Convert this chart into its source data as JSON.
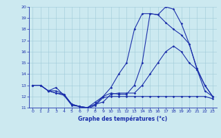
{
  "xlabel": "Graphe des températures (°c)",
  "xlim": [
    -0.5,
    23.5
  ],
  "ylim": [
    11,
    20
  ],
  "yticks": [
    11,
    12,
    13,
    14,
    15,
    16,
    17,
    18,
    19,
    20
  ],
  "xticks": [
    0,
    1,
    2,
    3,
    4,
    5,
    6,
    7,
    8,
    9,
    10,
    11,
    12,
    13,
    14,
    15,
    16,
    17,
    18,
    19,
    20,
    21,
    22,
    23
  ],
  "bg_color": "#cce9f0",
  "line_color": "#1a2eaa",
  "grid_color": "#9ecad8",
  "line1_y": [
    13.0,
    13.0,
    12.5,
    12.8,
    12.1,
    11.2,
    11.1,
    11.0,
    11.3,
    12.0,
    12.3,
    12.2,
    12.2,
    13.0,
    15.0,
    19.4,
    19.3,
    20.0,
    19.8,
    18.5,
    16.7,
    14.5,
    13.0,
    12.0
  ],
  "line2_y": [
    13.0,
    13.0,
    12.5,
    12.3,
    12.2,
    11.3,
    11.1,
    11.0,
    11.3,
    11.5,
    12.2,
    12.3,
    12.3,
    12.3,
    13.0,
    14.0,
    15.0,
    16.0,
    16.5,
    16.0,
    15.0,
    14.4,
    12.5,
    12.0
  ],
  "line3_y": [
    13.0,
    13.0,
    12.5,
    12.5,
    12.2,
    11.3,
    11.1,
    11.0,
    11.5,
    12.0,
    12.8,
    14.0,
    15.0,
    18.0,
    19.4,
    19.4,
    19.3,
    18.6,
    18.0,
    17.5,
    16.7,
    14.4,
    13.0,
    12.0
  ],
  "line4_y": [
    13.0,
    13.0,
    12.5,
    12.3,
    12.1,
    11.3,
    11.1,
    10.9,
    11.2,
    11.9,
    12.0,
    12.0,
    12.0,
    12.0,
    12.0,
    12.0,
    12.0,
    12.0,
    12.0,
    12.0,
    12.0,
    12.0,
    12.0,
    11.8
  ]
}
